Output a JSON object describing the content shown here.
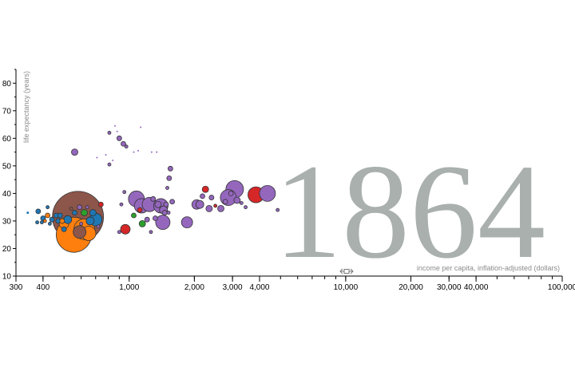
{
  "chart_data": {
    "type": "scatter",
    "title": "",
    "year": "1864",
    "xlabel": "income per capita, inflation-adjusted (dollars)",
    "ylabel": "life expectancy (years)",
    "x_scale": "log",
    "xlim": [
      300,
      100000
    ],
    "ylim": [
      10,
      85
    ],
    "x_ticks": [
      {
        "value": 300,
        "label": "300"
      },
      {
        "value": 400,
        "label": "400"
      },
      {
        "value": 1000,
        "label": "1,000"
      },
      {
        "value": 2000,
        "label": "2,000"
      },
      {
        "value": 3000,
        "label": "3,000"
      },
      {
        "value": 4000,
        "label": "4,000"
      },
      {
        "value": 10000,
        "label": "10,000"
      },
      {
        "value": 20000,
        "label": "20,000"
      },
      {
        "value": 30000,
        "label": "30,000"
      },
      {
        "value": 40000,
        "label": "40,000"
      },
      {
        "value": 100000,
        "label": "100,000"
      }
    ],
    "y_ticks": [
      {
        "value": 10,
        "label": "10"
      },
      {
        "value": 20,
        "label": "20"
      },
      {
        "value": 30,
        "label": "30"
      },
      {
        "value": 40,
        "label": "40"
      },
      {
        "value": 50,
        "label": "50"
      },
      {
        "value": 60,
        "label": "60"
      },
      {
        "value": 70,
        "label": "70"
      },
      {
        "value": 80,
        "label": "80"
      }
    ],
    "grid": false,
    "colors": {
      "purple": "#9467bd",
      "brown": "#8c564b",
      "orange": "#ff7f0e",
      "blue": "#1f77b4",
      "red": "#d62728",
      "green": "#2ca02c",
      "year": "#a9b0ae"
    },
    "points": [
      {
        "x": 560,
        "y": 55,
        "r": 4,
        "color": "purple"
      },
      {
        "x": 580,
        "y": 31.5,
        "r": 32,
        "color": "brown"
      },
      {
        "x": 555,
        "y": 25,
        "r": 22,
        "color": "orange"
      },
      {
        "x": 620,
        "y": 27,
        "r": 13,
        "color": "orange"
      },
      {
        "x": 590,
        "y": 26,
        "r": 8,
        "color": "brown"
      },
      {
        "x": 650,
        "y": 25.5,
        "r": 9,
        "color": "orange"
      },
      {
        "x": 500,
        "y": 29,
        "r": 6,
        "color": "orange"
      },
      {
        "x": 520,
        "y": 30.5,
        "r": 5,
        "color": "blue"
      },
      {
        "x": 660,
        "y": 30,
        "r": 5,
        "color": "blue"
      },
      {
        "x": 700,
        "y": 30.5,
        "r": 8,
        "color": "blue"
      },
      {
        "x": 680,
        "y": 33,
        "r": 4,
        "color": "blue"
      },
      {
        "x": 620,
        "y": 33,
        "r": 4,
        "color": "green"
      },
      {
        "x": 740,
        "y": 36,
        "r": 3,
        "color": "red"
      },
      {
        "x": 380,
        "y": 33.5,
        "r": 3,
        "color": "blue"
      },
      {
        "x": 400,
        "y": 31,
        "r": 3,
        "color": "blue"
      },
      {
        "x": 420,
        "y": 32,
        "r": 3,
        "color": "orange"
      },
      {
        "x": 440,
        "y": 30.5,
        "r": 3,
        "color": "blue"
      },
      {
        "x": 460,
        "y": 32,
        "r": 3,
        "color": "blue"
      },
      {
        "x": 470,
        "y": 30,
        "r": 3,
        "color": "blue"
      },
      {
        "x": 480,
        "y": 32,
        "r": 3,
        "color": "blue"
      },
      {
        "x": 490,
        "y": 30,
        "r": 3,
        "color": "orange"
      },
      {
        "x": 500,
        "y": 27,
        "r": 3,
        "color": "blue"
      },
      {
        "x": 540,
        "y": 34.5,
        "r": 2,
        "color": "brown"
      },
      {
        "x": 560,
        "y": 33,
        "r": 3,
        "color": "blue"
      },
      {
        "x": 590,
        "y": 35,
        "r": 3,
        "color": "purple"
      },
      {
        "x": 640,
        "y": 35,
        "r": 2,
        "color": "purple"
      },
      {
        "x": 600,
        "y": 29,
        "r": 2,
        "color": "purple"
      },
      {
        "x": 430,
        "y": 29,
        "r": 2,
        "color": "blue"
      },
      {
        "x": 420,
        "y": 35,
        "r": 2,
        "color": "blue"
      },
      {
        "x": 408,
        "y": 30,
        "r": 2,
        "color": "orange"
      },
      {
        "x": 395,
        "y": 29.5,
        "r": 2,
        "color": "blue"
      },
      {
        "x": 376,
        "y": 29.5,
        "r": 2,
        "color": "blue"
      },
      {
        "x": 340,
        "y": 33,
        "r": 1.5,
        "color": "blue"
      },
      {
        "x": 720,
        "y": 28,
        "r": 2,
        "color": "purple"
      },
      {
        "x": 810,
        "y": 62,
        "r": 2,
        "color": "purple"
      },
      {
        "x": 860,
        "y": 64.5,
        "r": 1,
        "color": "purple"
      },
      {
        "x": 900,
        "y": 60,
        "r": 3,
        "color": "purple"
      },
      {
        "x": 940,
        "y": 58,
        "r": 3,
        "color": "purple"
      },
      {
        "x": 970,
        "y": 57,
        "r": 2,
        "color": "purple"
      },
      {
        "x": 810,
        "y": 50.5,
        "r": 2,
        "color": "purple"
      },
      {
        "x": 840,
        "y": 52,
        "r": 1,
        "color": "purple"
      },
      {
        "x": 780,
        "y": 54,
        "r": 1,
        "color": "purple"
      },
      {
        "x": 710,
        "y": 53,
        "r": 1,
        "color": "purple"
      },
      {
        "x": 880,
        "y": 62.5,
        "r": 1,
        "color": "purple"
      },
      {
        "x": 1050,
        "y": 55,
        "r": 1,
        "color": "purple"
      },
      {
        "x": 1130,
        "y": 64,
        "r": 1,
        "color": "purple"
      },
      {
        "x": 1270,
        "y": 55,
        "r": 1,
        "color": "purple"
      },
      {
        "x": 1340,
        "y": 55,
        "r": 1,
        "color": "purple"
      },
      {
        "x": 1100,
        "y": 55.5,
        "r": 1,
        "color": "purple"
      },
      {
        "x": 920,
        "y": 36,
        "r": 2,
        "color": "purple"
      },
      {
        "x": 950,
        "y": 40.5,
        "r": 2,
        "color": "purple"
      },
      {
        "x": 960,
        "y": 27,
        "r": 6,
        "color": "red"
      },
      {
        "x": 900,
        "y": 26,
        "r": 2,
        "color": "purple"
      },
      {
        "x": 1050,
        "y": 32,
        "r": 3,
        "color": "green"
      },
      {
        "x": 1120,
        "y": 34,
        "r": 3,
        "color": "red"
      },
      {
        "x": 1080,
        "y": 38,
        "r": 10,
        "color": "purple"
      },
      {
        "x": 1140,
        "y": 35.5,
        "r": 9,
        "color": "purple"
      },
      {
        "x": 1240,
        "y": 36,
        "r": 9,
        "color": "purple"
      },
      {
        "x": 1290,
        "y": 38,
        "r": 3,
        "color": "purple"
      },
      {
        "x": 1360,
        "y": 36,
        "r": 4,
        "color": "purple"
      },
      {
        "x": 1400,
        "y": 35.5,
        "r": 9,
        "color": "purple"
      },
      {
        "x": 1440,
        "y": 34,
        "r": 5,
        "color": "purple"
      },
      {
        "x": 1460,
        "y": 33,
        "r": 3,
        "color": "purple"
      },
      {
        "x": 1430,
        "y": 29.5,
        "r": 9,
        "color": "purple"
      },
      {
        "x": 1480,
        "y": 36,
        "r": 3,
        "color": "purple"
      },
      {
        "x": 1150,
        "y": 29,
        "r": 4,
        "color": "green"
      },
      {
        "x": 1210,
        "y": 30.5,
        "r": 3,
        "color": "purple"
      },
      {
        "x": 1260,
        "y": 26,
        "r": 2,
        "color": "purple"
      },
      {
        "x": 1320,
        "y": 31,
        "r": 3,
        "color": "purple"
      },
      {
        "x": 1500,
        "y": 42,
        "r": 2,
        "color": "purple"
      },
      {
        "x": 1530,
        "y": 45.5,
        "r": 3,
        "color": "purple"
      },
      {
        "x": 1550,
        "y": 49,
        "r": 3,
        "color": "purple"
      },
      {
        "x": 1580,
        "y": 37,
        "r": 3,
        "color": "purple"
      },
      {
        "x": 1520,
        "y": 33,
        "r": 2,
        "color": "purple"
      },
      {
        "x": 1850,
        "y": 29.5,
        "r": 7,
        "color": "purple"
      },
      {
        "x": 2050,
        "y": 36,
        "r": 6,
        "color": "purple"
      },
      {
        "x": 2120,
        "y": 36,
        "r": 5,
        "color": "purple"
      },
      {
        "x": 2180,
        "y": 39,
        "r": 3,
        "color": "purple"
      },
      {
        "x": 2250,
        "y": 41.5,
        "r": 4,
        "color": "red"
      },
      {
        "x": 2340,
        "y": 34.5,
        "r": 4,
        "color": "purple"
      },
      {
        "x": 2400,
        "y": 38.5,
        "r": 3,
        "color": "purple"
      },
      {
        "x": 2500,
        "y": 35.5,
        "r": 2,
        "color": "red"
      },
      {
        "x": 2650,
        "y": 34.5,
        "r": 4,
        "color": "purple"
      },
      {
        "x": 2780,
        "y": 37,
        "r": 3,
        "color": "purple"
      },
      {
        "x": 2870,
        "y": 38.5,
        "r": 10,
        "color": "purple"
      },
      {
        "x": 3070,
        "y": 41.5,
        "r": 11,
        "color": "purple"
      },
      {
        "x": 2950,
        "y": 40,
        "r": 3,
        "color": "purple"
      },
      {
        "x": 3150,
        "y": 37.5,
        "r": 4,
        "color": "purple"
      },
      {
        "x": 3300,
        "y": 36.5,
        "r": 2,
        "color": "purple"
      },
      {
        "x": 3850,
        "y": 39.5,
        "r": 10,
        "color": "red"
      },
      {
        "x": 4350,
        "y": 40,
        "r": 10,
        "color": "purple"
      },
      {
        "x": 3450,
        "y": 35,
        "r": 2,
        "color": "purple"
      },
      {
        "x": 4850,
        "y": 34,
        "r": 2,
        "color": "purple"
      }
    ]
  }
}
